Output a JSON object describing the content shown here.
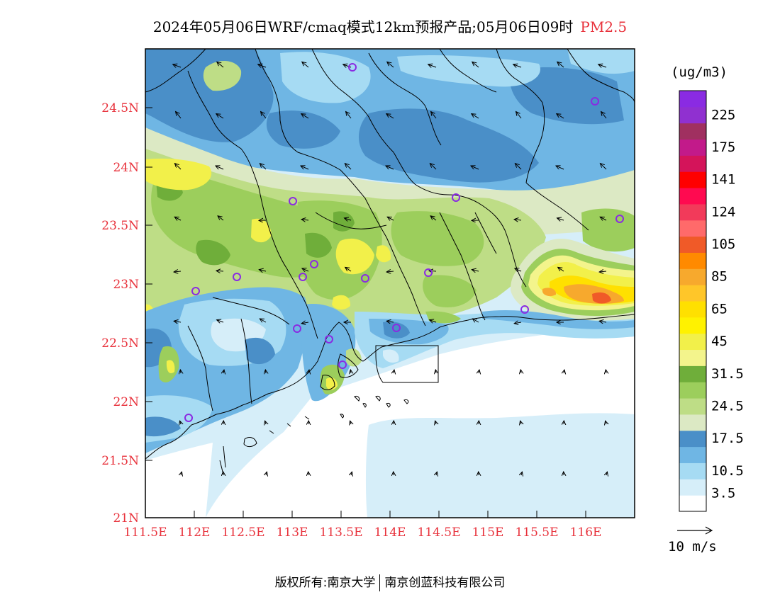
{
  "title": {
    "main": "2024年05月06日WRF/cmaq模式12km预报产品;05月06日09时",
    "variable": "PM2.5"
  },
  "axes": {
    "y_ticks": [
      "24.5N",
      "24N",
      "23.5N",
      "23N",
      "22.5N",
      "22N",
      "21.5N",
      "21N"
    ],
    "x_ticks": [
      "111.5E",
      "112E",
      "112.5E",
      "113E",
      "113.5E",
      "114E",
      "114.5E",
      "115E",
      "115.5E",
      "116E"
    ]
  },
  "legend": {
    "unit": "(ug/m3)",
    "levels": [
      {
        "label": "3.5",
        "color": "#ffffff"
      },
      {
        "label": "",
        "color": "#d6eef9"
      },
      {
        "label": "10.5",
        "color": "#a6dbf3"
      },
      {
        "label": "",
        "color": "#6fb6e4"
      },
      {
        "label": "17.5",
        "color": "#4a8fc8"
      },
      {
        "label": "",
        "color": "#dce9c4"
      },
      {
        "label": "24.5",
        "color": "#bedd86"
      },
      {
        "label": "",
        "color": "#9cce5c"
      },
      {
        "label": "31.5",
        "color": "#6fae3a"
      },
      {
        "label": "",
        "color": "#f3f48c"
      },
      {
        "label": "45",
        "color": "#f2f04a"
      },
      {
        "label": "",
        "color": "#fff200"
      },
      {
        "label": "65",
        "color": "#ffe000"
      },
      {
        "label": "",
        "color": "#ffc629"
      },
      {
        "label": "85",
        "color": "#f7a92d"
      },
      {
        "label": "",
        "color": "#ff8a00"
      },
      {
        "label": "105",
        "color": "#f05a28"
      },
      {
        "label": "",
        "color": "#ff6a6a"
      },
      {
        "label": "124",
        "color": "#f23a5a"
      },
      {
        "label": "",
        "color": "#ff0a50"
      },
      {
        "label": "141",
        "color": "#ff0000"
      },
      {
        "label": "",
        "color": "#d4145a"
      },
      {
        "label": "175",
        "color": "#c21a8a"
      },
      {
        "label": "",
        "color": "#a03060"
      },
      {
        "label": "225",
        "color": "#9030d0"
      },
      {
        "label": "",
        "color": "#8a2be2"
      }
    ]
  },
  "wind_scale_label": "10 m/s",
  "footer": {
    "left": "版权所有:南京大学",
    "right": "南京创蓝科技有限公司"
  },
  "colors": {
    "title_accent": "#e8323c",
    "station_marker": "#8a2be2"
  }
}
